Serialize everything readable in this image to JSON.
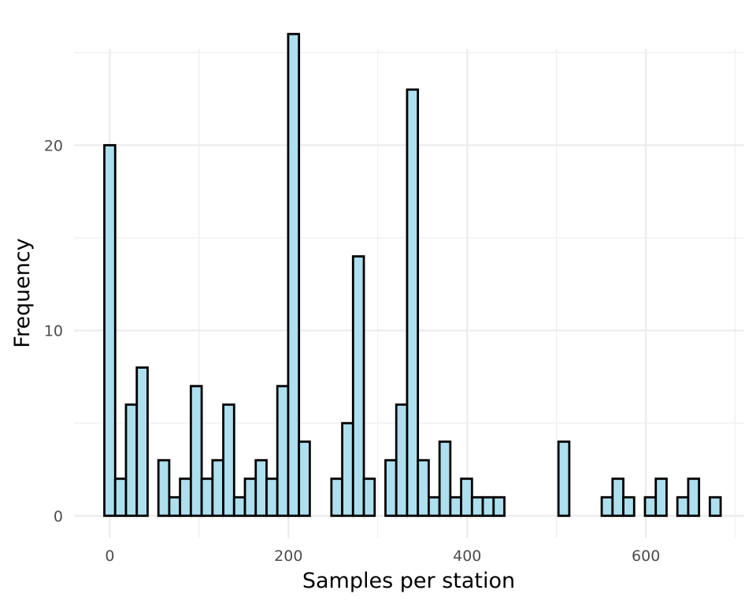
{
  "chart_data": {
    "type": "bar",
    "subtype": "histogram",
    "xlabel": "Samples per station",
    "ylabel": "Frequency",
    "xlim": [
      -40,
      710
    ],
    "ylim": [
      -1.2,
      25.2
    ],
    "x_ticks": [
      0,
      200,
      400,
      600
    ],
    "y_ticks": [
      0,
      10,
      20
    ],
    "grid": true,
    "bin_width": 12.1,
    "bin_start": -6.05,
    "counts": [
      20,
      2,
      6,
      8,
      0,
      3,
      1,
      2,
      7,
      2,
      3,
      6,
      1,
      2,
      3,
      2,
      7,
      26,
      4,
      0,
      0,
      2,
      5,
      14,
      2,
      0,
      3,
      6,
      23,
      3,
      1,
      4,
      1,
      2,
      1,
      1,
      1,
      0,
      0,
      0,
      0,
      0,
      4,
      0,
      0,
      0,
      1,
      2,
      1,
      0,
      1,
      2,
      0,
      1,
      2,
      0,
      1
    ],
    "colors": {
      "fill": "#ADDFEE",
      "stroke": "#000000"
    }
  }
}
